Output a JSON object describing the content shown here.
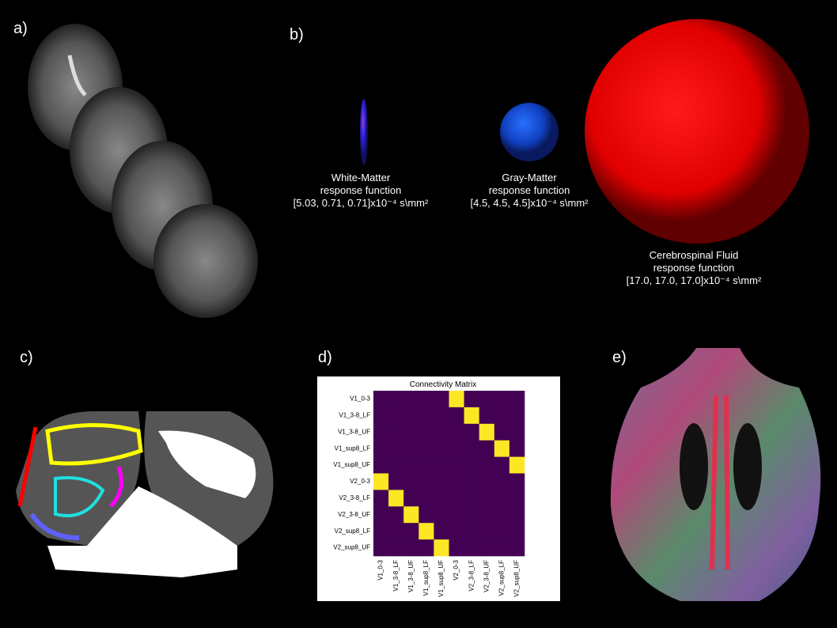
{
  "panel_labels": [
    "a)",
    "b)",
    "c)",
    "d)",
    "e)"
  ],
  "response_functions": [
    {
      "name": "White-Matter",
      "subtitle": "response function",
      "values": "[5.03, 0.71, 0.71]x10⁻⁴ s\\mm²"
    },
    {
      "name": "Gray-Matter",
      "subtitle": "response function",
      "values": "[4.5, 4.5, 4.5]x10⁻⁴ s\\mm²"
    },
    {
      "name": "Cerebrospinal Fluid",
      "subtitle": "response function",
      "values": "[17.0, 17.0, 17.0]x10⁻⁴ s\\mm²"
    }
  ],
  "connectivity_matrix": {
    "title": "Connectivity Matrix",
    "rows": [
      "V1_0-3",
      "V1_3-8_LF",
      "V1_3-8_UF",
      "V1_sup8_LF",
      "V1_sup8_UF",
      "V2_0-3",
      "V2_3-8_LF",
      "V2_3-8_UF",
      "V2_sup8_LF",
      "V2_sup8_UF"
    ],
    "columns": [
      "V1_0-3",
      "V1_3-8_LF",
      "V1_3-8_UF",
      "V1_sup8_LF",
      "V1_sup8_UF",
      "V2_0-3",
      "V2_3-8_LF",
      "V2_3-8_UF",
      "V2_sup8_LF",
      "V2_sup8_UF"
    ],
    "values": [
      [
        0,
        0,
        0,
        0,
        0,
        1,
        0,
        0,
        0,
        0
      ],
      [
        0,
        0,
        0,
        0,
        0,
        0,
        1,
        0,
        0,
        0
      ],
      [
        0,
        0,
        0,
        0,
        0,
        0,
        0,
        1,
        0,
        0
      ],
      [
        0,
        0,
        0,
        0,
        0,
        0,
        0,
        0,
        1,
        0
      ],
      [
        0,
        0,
        0,
        0,
        0,
        0,
        0,
        0,
        0,
        1
      ],
      [
        1,
        0,
        0,
        0,
        0,
        0,
        0,
        0,
        0,
        0
      ],
      [
        0,
        1,
        0,
        0,
        0,
        0,
        0,
        0,
        0,
        0
      ],
      [
        0,
        0,
        1,
        0,
        0,
        0,
        0,
        0,
        0,
        0
      ],
      [
        0,
        0,
        0,
        1,
        0,
        0,
        0,
        0,
        0,
        0
      ],
      [
        0,
        0,
        0,
        0,
        1,
        0,
        0,
        0,
        0,
        0
      ]
    ],
    "color_low": "#440154",
    "color_high": "#fde725"
  }
}
